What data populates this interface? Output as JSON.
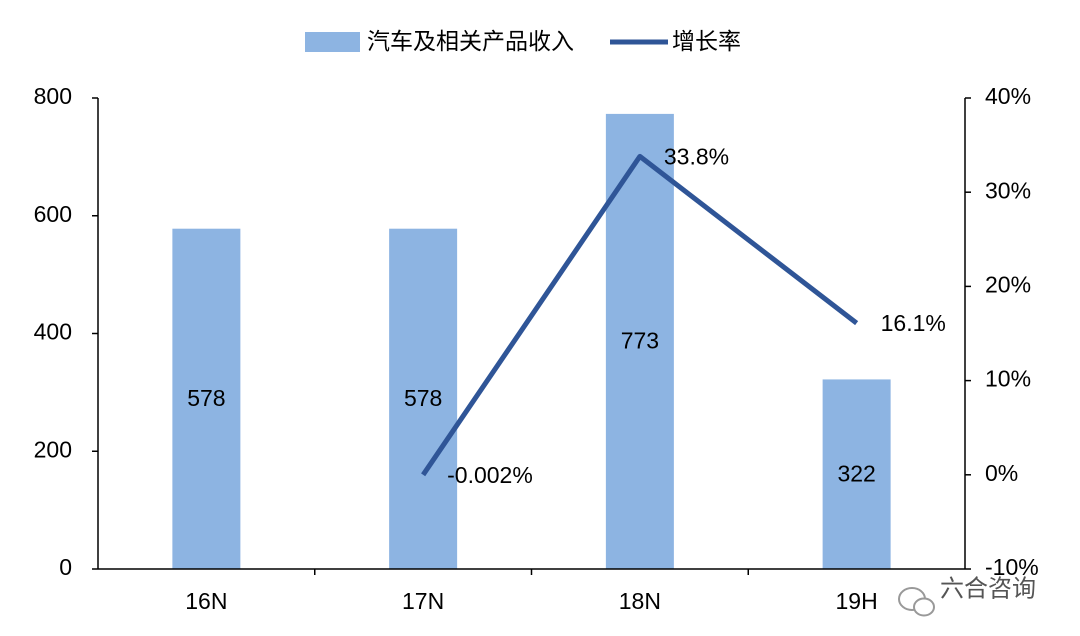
{
  "chart_data": {
    "type": "bar",
    "categories": [
      "16N",
      "17N",
      "18N",
      "19H"
    ],
    "series": [
      {
        "name": "汽车及相关产品收入",
        "type": "bar",
        "color": "#8db4e2",
        "values": [
          578,
          578,
          773,
          322
        ]
      },
      {
        "name": "增长率",
        "type": "line",
        "axis": "y2",
        "color": "#2f5597",
        "values": [
          null,
          -0.002,
          33.8,
          16.1
        ],
        "value_labels": [
          null,
          "-0.002%",
          "33.8%",
          "16.1%"
        ]
      }
    ],
    "ylim": [
      0,
      800
    ],
    "yticks": [
      0,
      200,
      400,
      600,
      800
    ],
    "y2lim": [
      -10,
      40
    ],
    "y2ticks": [
      {
        "value": -10,
        "label": "-10%"
      },
      {
        "value": 0,
        "label": "0%"
      },
      {
        "value": 10,
        "label": "10%"
      },
      {
        "value": 20,
        "label": "20%"
      },
      {
        "value": 30,
        "label": "30%"
      },
      {
        "value": 40,
        "label": "40%"
      }
    ],
    "legend": "top",
    "watermark": "六合咨询"
  }
}
